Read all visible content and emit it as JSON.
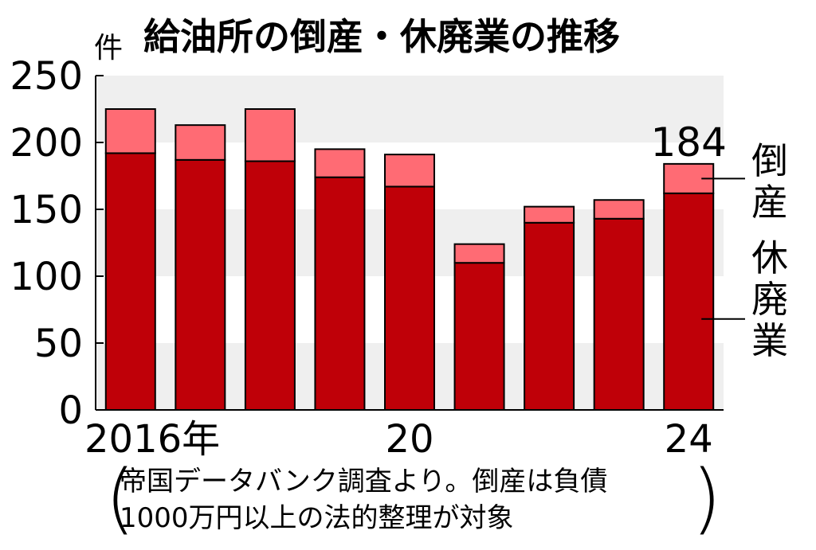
{
  "chart_data": {
    "type": "bar",
    "stacked": true,
    "title": "給油所の倒産・休廃業の推移",
    "unit_label": "件",
    "categories": [
      "2016年",
      "",
      "",
      "",
      "20",
      "",
      "",
      "",
      "24"
    ],
    "series": [
      {
        "name": "休廃業",
        "values": [
          192,
          187,
          186,
          174,
          167,
          110,
          140,
          143,
          162
        ],
        "color": "#bf0008"
      },
      {
        "name": "倒産",
        "values": [
          33,
          26,
          39,
          21,
          24,
          14,
          12,
          14,
          22
        ],
        "color": "#ff6b74"
      }
    ],
    "ylim": [
      0,
      250
    ],
    "yticks": [
      "0",
      "50",
      "100",
      "150",
      "200",
      "250"
    ],
    "annotation": "184",
    "annotation_index": 8,
    "band_color": "#efefef"
  },
  "note": {
    "line1": "帝国データバンク調査より。倒産は負債",
    "line2": "1000万円以上の法的整理が対象",
    "open_paren": "(",
    "close_paren": ")"
  }
}
